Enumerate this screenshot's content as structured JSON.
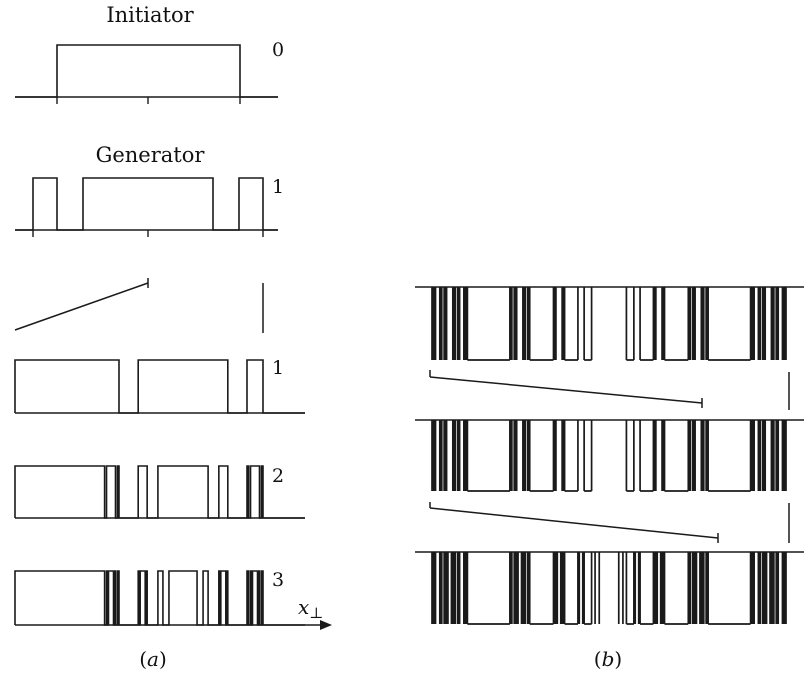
{
  "panel_a": {
    "initiator": {
      "title": "Initiator",
      "level": "0"
    },
    "generator": {
      "title": "Generator",
      "level": "1"
    },
    "iterations": [
      {
        "level": "1"
      },
      {
        "level": "2"
      },
      {
        "level": "3"
      }
    ],
    "axis_label_base": "x",
    "axis_label_sub": "⊥",
    "caption_paren_open": "(",
    "caption_letter": "a",
    "caption_paren_close": ")"
  },
  "panel_b": {
    "caption_paren_open": "(",
    "caption_letter": "b",
    "caption_paren_close": ")"
  },
  "colors": {
    "ink": "#1a1a1a",
    "background": "#ffffff"
  }
}
